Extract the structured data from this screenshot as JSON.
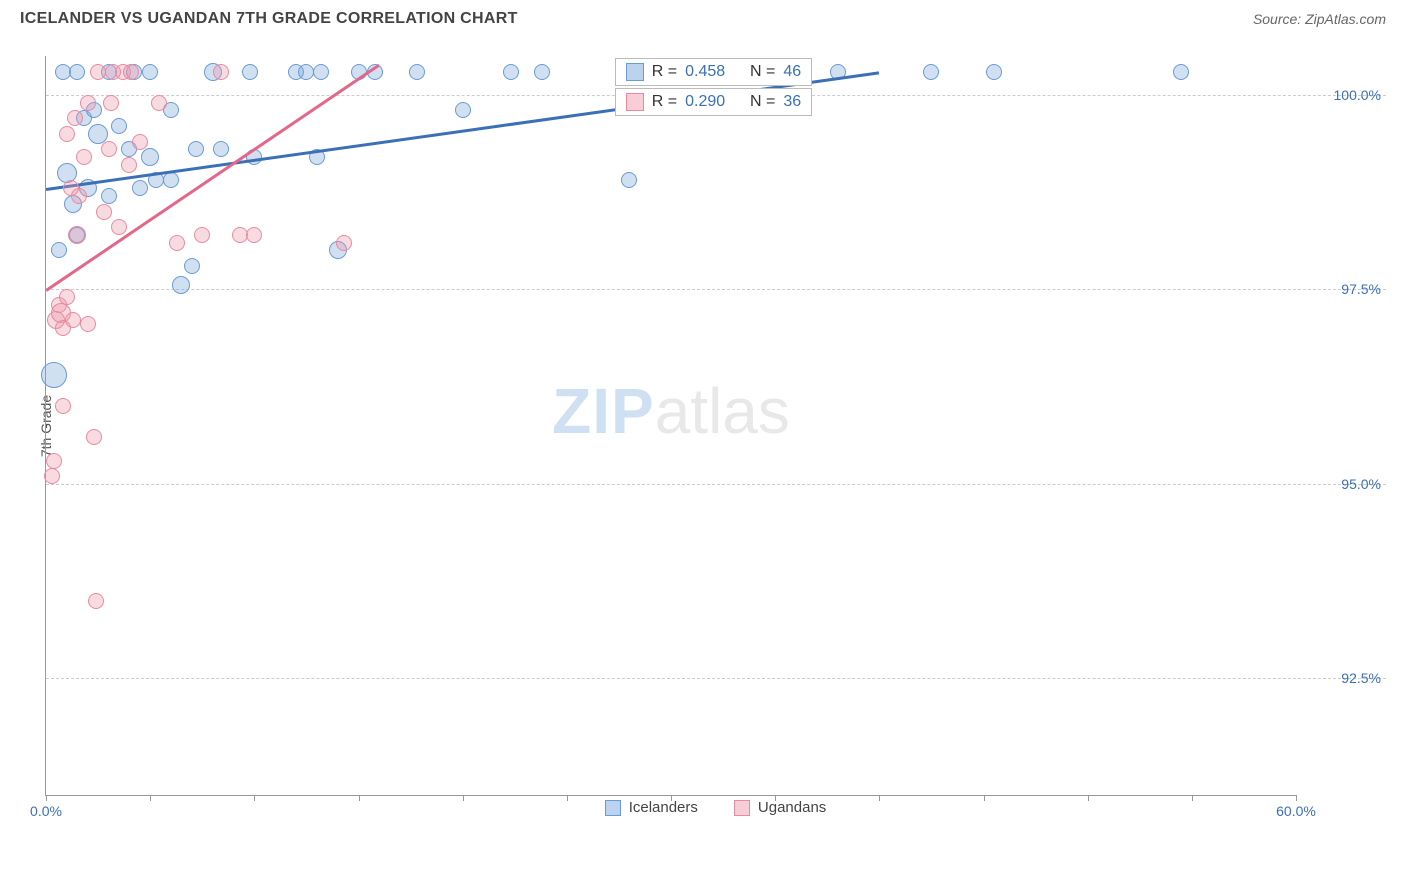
{
  "header": {
    "title": "ICELANDER VS UGANDAN 7TH GRADE CORRELATION CHART",
    "source": "Source: ZipAtlas.com"
  },
  "chart": {
    "type": "scatter",
    "ylabel": "7th Grade",
    "xlim": [
      0,
      60
    ],
    "ylim": [
      91.0,
      100.5
    ],
    "xtick_positions": [
      0,
      5,
      10,
      15,
      20,
      25,
      30,
      35,
      40,
      45,
      50,
      55,
      60
    ],
    "xtick_labels": {
      "0": "0.0%",
      "60": "60.0%"
    },
    "ytick_positions": [
      92.5,
      95.0,
      97.5,
      100.0
    ],
    "ytick_labels": [
      "92.5%",
      "95.0%",
      "97.5%",
      "100.0%"
    ],
    "grid_color": "#cccccc",
    "axis_color": "#999999",
    "background_color": "#ffffff",
    "watermark": {
      "bold": "ZIP",
      "light": "atlas"
    },
    "series": [
      {
        "name": "Icelanders",
        "fill": "rgba(120,165,216,0.35)",
        "stroke": "#6a9bd8",
        "swatch_fill": "#bcd3ef",
        "swatch_stroke": "#6a9bd8",
        "stats": {
          "R": "0.458",
          "N": "46"
        },
        "trend": {
          "x1": 0,
          "y1": 98.8,
          "x2": 40,
          "y2": 100.3,
          "color": "#3b6fb6"
        },
        "points": [
          {
            "x": 0.4,
            "y": 96.4,
            "r": 13
          },
          {
            "x": 0.6,
            "y": 98.0,
            "r": 8
          },
          {
            "x": 0.8,
            "y": 100.3,
            "r": 8
          },
          {
            "x": 1.0,
            "y": 99.0,
            "r": 10
          },
          {
            "x": 1.3,
            "y": 98.6,
            "r": 9
          },
          {
            "x": 1.5,
            "y": 100.3,
            "r": 8
          },
          {
            "x": 1.5,
            "y": 98.2,
            "r": 8
          },
          {
            "x": 1.8,
            "y": 99.7,
            "r": 8
          },
          {
            "x": 2.0,
            "y": 98.8,
            "r": 9
          },
          {
            "x": 2.3,
            "y": 99.8,
            "r": 8
          },
          {
            "x": 2.5,
            "y": 99.5,
            "r": 10
          },
          {
            "x": 3.0,
            "y": 100.3,
            "r": 8
          },
          {
            "x": 3.0,
            "y": 98.7,
            "r": 8
          },
          {
            "x": 3.5,
            "y": 99.6,
            "r": 8
          },
          {
            "x": 4.0,
            "y": 99.3,
            "r": 8
          },
          {
            "x": 4.2,
            "y": 100.3,
            "r": 8
          },
          {
            "x": 4.5,
            "y": 98.8,
            "r": 8
          },
          {
            "x": 5.0,
            "y": 99.2,
            "r": 9
          },
          {
            "x": 5.0,
            "y": 100.3,
            "r": 8
          },
          {
            "x": 5.3,
            "y": 98.9,
            "r": 8
          },
          {
            "x": 6.0,
            "y": 99.8,
            "r": 8
          },
          {
            "x": 6.0,
            "y": 98.9,
            "r": 8
          },
          {
            "x": 6.5,
            "y": 97.55,
            "r": 9
          },
          {
            "x": 7.0,
            "y": 97.8,
            "r": 8
          },
          {
            "x": 7.2,
            "y": 99.3,
            "r": 8
          },
          {
            "x": 8.0,
            "y": 100.3,
            "r": 9
          },
          {
            "x": 8.4,
            "y": 99.3,
            "r": 8
          },
          {
            "x": 9.8,
            "y": 100.3,
            "r": 8
          },
          {
            "x": 10.0,
            "y": 99.2,
            "r": 8
          },
          {
            "x": 12.0,
            "y": 100.3,
            "r": 8
          },
          {
            "x": 12.5,
            "y": 100.3,
            "r": 8
          },
          {
            "x": 13.0,
            "y": 99.2,
            "r": 8
          },
          {
            "x": 13.2,
            "y": 100.3,
            "r": 8
          },
          {
            "x": 14.0,
            "y": 98.0,
            "r": 9
          },
          {
            "x": 15.0,
            "y": 100.3,
            "r": 8
          },
          {
            "x": 15.8,
            "y": 100.3,
            "r": 8
          },
          {
            "x": 17.8,
            "y": 100.3,
            "r": 8
          },
          {
            "x": 20.0,
            "y": 99.8,
            "r": 8
          },
          {
            "x": 22.3,
            "y": 100.3,
            "r": 8
          },
          {
            "x": 23.8,
            "y": 100.3,
            "r": 8
          },
          {
            "x": 28.0,
            "y": 98.9,
            "r": 8
          },
          {
            "x": 30.5,
            "y": 100.3,
            "r": 8
          },
          {
            "x": 38.0,
            "y": 100.3,
            "r": 8
          },
          {
            "x": 42.5,
            "y": 100.3,
            "r": 8
          },
          {
            "x": 45.5,
            "y": 100.3,
            "r": 8
          },
          {
            "x": 54.5,
            "y": 100.3,
            "r": 8
          }
        ]
      },
      {
        "name": "Ugandans",
        "fill": "rgba(236,150,170,0.35)",
        "stroke": "#e88ba1",
        "swatch_fill": "#f7cdd8",
        "swatch_stroke": "#e88ba1",
        "stats": {
          "R": "0.290",
          "N": "36"
        },
        "trend": {
          "x1": 0,
          "y1": 97.5,
          "x2": 16,
          "y2": 100.4,
          "color": "#e26788"
        },
        "points": [
          {
            "x": 0.3,
            "y": 95.1,
            "r": 8
          },
          {
            "x": 0.4,
            "y": 95.3,
            "r": 8
          },
          {
            "x": 0.5,
            "y": 97.1,
            "r": 9
          },
          {
            "x": 0.6,
            "y": 97.3,
            "r": 8
          },
          {
            "x": 0.7,
            "y": 97.2,
            "r": 10
          },
          {
            "x": 0.8,
            "y": 96.0,
            "r": 8
          },
          {
            "x": 0.8,
            "y": 97.0,
            "r": 8
          },
          {
            "x": 1.0,
            "y": 97.4,
            "r": 8
          },
          {
            "x": 1.0,
            "y": 99.5,
            "r": 8
          },
          {
            "x": 1.2,
            "y": 98.8,
            "r": 8
          },
          {
            "x": 1.3,
            "y": 97.1,
            "r": 8
          },
          {
            "x": 1.4,
            "y": 99.7,
            "r": 8
          },
          {
            "x": 1.5,
            "y": 98.2,
            "r": 9
          },
          {
            "x": 1.6,
            "y": 98.7,
            "r": 8
          },
          {
            "x": 1.8,
            "y": 99.2,
            "r": 8
          },
          {
            "x": 2.0,
            "y": 97.05,
            "r": 8
          },
          {
            "x": 2.0,
            "y": 99.9,
            "r": 8
          },
          {
            "x": 2.3,
            "y": 95.6,
            "r": 8
          },
          {
            "x": 2.4,
            "y": 93.5,
            "r": 8
          },
          {
            "x": 2.5,
            "y": 100.3,
            "r": 8
          },
          {
            "x": 2.8,
            "y": 98.5,
            "r": 8
          },
          {
            "x": 3.0,
            "y": 99.3,
            "r": 8
          },
          {
            "x": 3.1,
            "y": 99.9,
            "r": 8
          },
          {
            "x": 3.2,
            "y": 100.3,
            "r": 8
          },
          {
            "x": 3.5,
            "y": 98.3,
            "r": 8
          },
          {
            "x": 3.7,
            "y": 100.3,
            "r": 8
          },
          {
            "x": 4.0,
            "y": 99.1,
            "r": 8
          },
          {
            "x": 4.1,
            "y": 100.3,
            "r": 8
          },
          {
            "x": 4.5,
            "y": 99.4,
            "r": 8
          },
          {
            "x": 5.4,
            "y": 99.9,
            "r": 8
          },
          {
            "x": 6.3,
            "y": 98.1,
            "r": 8
          },
          {
            "x": 7.5,
            "y": 98.2,
            "r": 8
          },
          {
            "x": 8.4,
            "y": 100.3,
            "r": 8
          },
          {
            "x": 9.3,
            "y": 98.2,
            "r": 8
          },
          {
            "x": 10.0,
            "y": 98.2,
            "r": 8
          },
          {
            "x": 14.3,
            "y": 98.1,
            "r": 8
          }
        ]
      }
    ],
    "bottom_legend": [
      {
        "label": "Icelanders",
        "fill": "#bcd3ef",
        "stroke": "#6a9bd8"
      },
      {
        "label": "Ugandans",
        "fill": "#f7cdd8",
        "stroke": "#e88ba1"
      }
    ]
  }
}
